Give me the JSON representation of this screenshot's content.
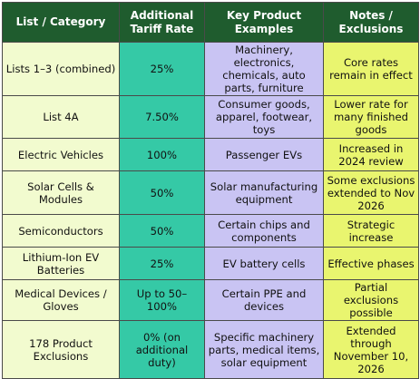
{
  "headers": [
    "List / Category",
    "Additional Tariff Rate",
    "Key Product Examples",
    "Notes / Exclusions"
  ],
  "rows": [
    {
      "category": "Lists 1–3 (combined)",
      "rate": "25%",
      "products": "Machinery, electronics, chemicals, auto parts, furniture",
      "notes": "Core rates remain in effect"
    },
    {
      "category": "List 4A",
      "rate": "7.50%",
      "products": "Consumer goods, apparel, footwear, toys",
      "notes": "Lower rate for many finished goods"
    },
    {
      "category": "Electric Vehicles",
      "rate": "100%",
      "products": "Passenger EVs",
      "notes": "Increased in 2024 review"
    },
    {
      "category": "Solar Cells & Modules",
      "rate": "50%",
      "products": "Solar manufacturing equipment",
      "notes": "Some exclusions extended to Nov 2026"
    },
    {
      "category": "Semiconductors",
      "rate": "50%",
      "products": "Certain chips and components",
      "notes": "Strategic increase"
    },
    {
      "category": "Lithium-Ion EV Batteries",
      "rate": "25%",
      "products": "EV battery cells",
      "notes": "Effective phases"
    },
    {
      "category": "Medical Devices / Gloves",
      "rate": "Up to 50–100%",
      "products": "Certain PPE and devices",
      "notes": "Partial exclusions possible"
    },
    {
      "category": "178 Product Exclusions",
      "rate": "0% (on additional duty)",
      "products": "Specific machinery parts, medical items, solar equipment",
      "notes": "Extended through November 10, 2026"
    }
  ],
  "colors": {
    "header": "#1f5c2e",
    "category": "#f2fbcf",
    "rate": "#35c9a6",
    "products": "#c9c4f3",
    "notes": "#e9f56f"
  }
}
